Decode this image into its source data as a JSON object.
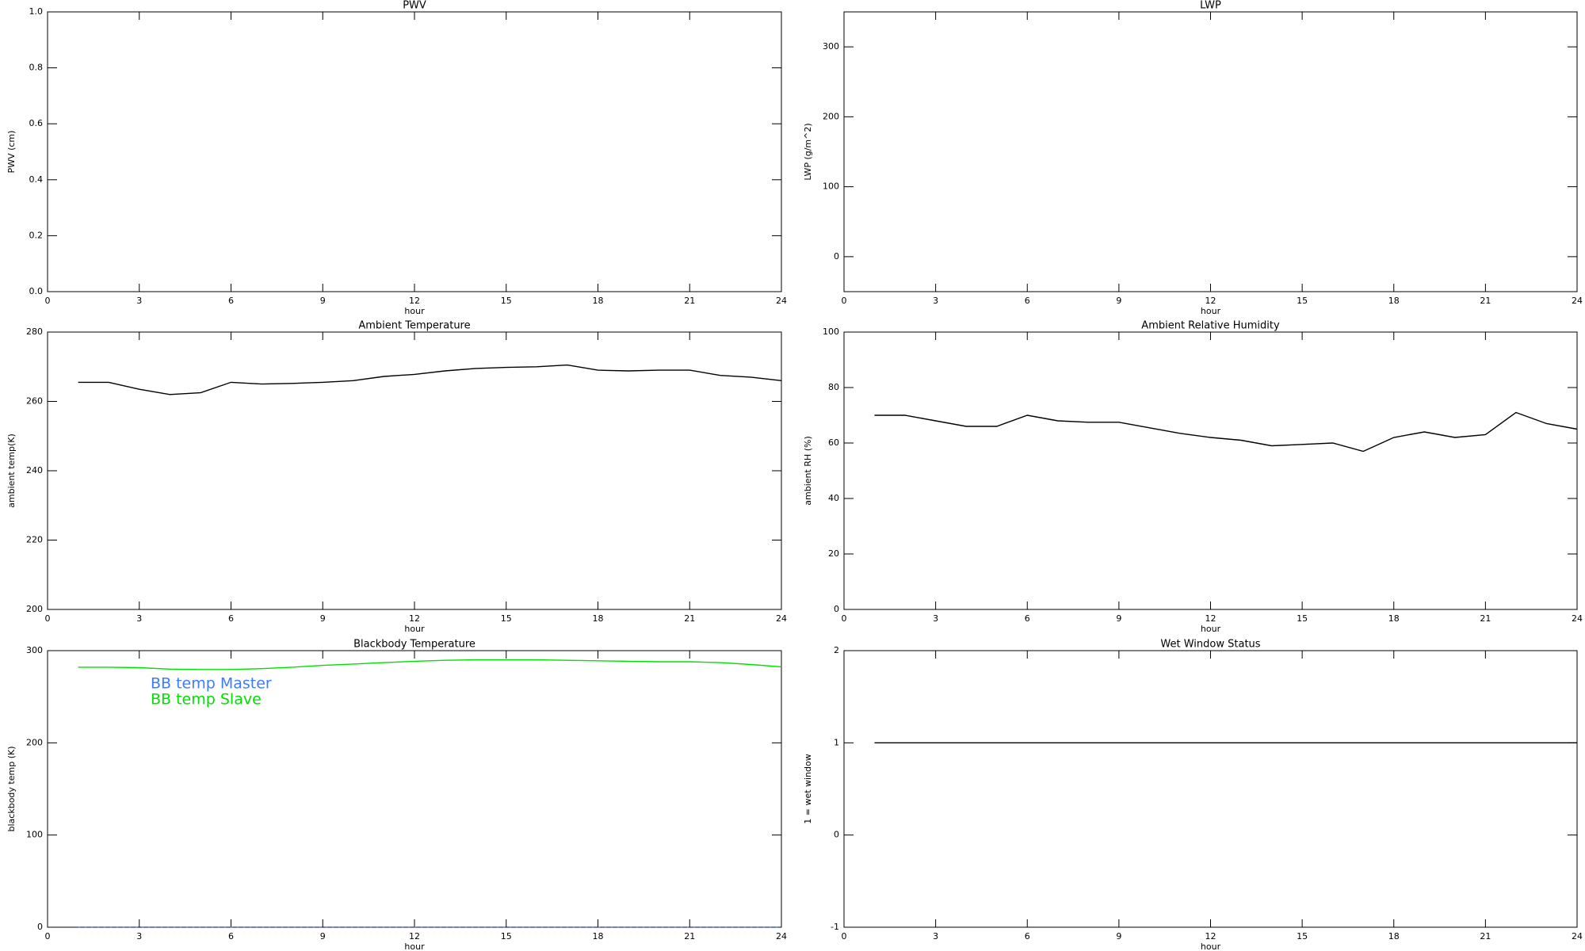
{
  "chart_data": [
    {
      "type": "line",
      "title": "PWV",
      "xlabel": "hour",
      "ylabel": "PWV (cm)",
      "xlim": [
        0,
        24
      ],
      "xticks": [
        0,
        3,
        6,
        9,
        12,
        15,
        18,
        21,
        24
      ],
      "ylim": [
        0,
        1
      ],
      "yticks": [
        {
          "value": 0,
          "label": "0.0"
        },
        0.2,
        0.4,
        0.6,
        0.8,
        {
          "value": 1,
          "label": "1.0"
        }
      ]
    },
    {
      "type": "line",
      "title": "LWP",
      "xlabel": "hour",
      "ylabel": "LWP (g/m^2)",
      "xlim": [
        0,
        24
      ],
      "xticks": [
        0,
        3,
        6,
        9,
        12,
        15,
        18,
        21,
        24
      ],
      "ylim": [
        -50,
        350
      ],
      "yticks": [
        0,
        100,
        200,
        300
      ]
    },
    {
      "type": "line",
      "title": "Ambient Temperature",
      "xlabel": "hour",
      "ylabel": "ambient temp(K)",
      "xlim": [
        0,
        24
      ],
      "xticks": [
        0,
        3,
        6,
        9,
        12,
        15,
        18,
        21,
        24
      ],
      "ylim": [
        200,
        280
      ],
      "yticks": [
        200,
        220,
        240,
        260,
        280
      ],
      "x": [
        1,
        2,
        3,
        4,
        5,
        6,
        7,
        8,
        9,
        10,
        11,
        12,
        13,
        14,
        15,
        16,
        17,
        18,
        19,
        20,
        21,
        22,
        23,
        24
      ],
      "series": [
        {
          "color": "#000000",
          "values": [
            265.5,
            265.5,
            263.5,
            262,
            262.5,
            265.5,
            265,
            265.2,
            265.5,
            266,
            267.2,
            267.8,
            268.8,
            269.5,
            269.8,
            270,
            270.5,
            269,
            268.8,
            269,
            269,
            267.5,
            267,
            266
          ]
        }
      ]
    },
    {
      "type": "line",
      "title": "Ambient Relative Humidity",
      "xlabel": "hour",
      "ylabel": "ambient RH (%)",
      "xlim": [
        0,
        24
      ],
      "xticks": [
        0,
        3,
        6,
        9,
        12,
        15,
        18,
        21,
        24
      ],
      "ylim": [
        0,
        100
      ],
      "yticks": [
        0,
        20,
        40,
        60,
        80,
        100
      ],
      "x": [
        1,
        2,
        3,
        4,
        5,
        6,
        7,
        8,
        9,
        10,
        11,
        12,
        13,
        14,
        15,
        16,
        17,
        18,
        19,
        20,
        21,
        22,
        23,
        24
      ],
      "series": [
        {
          "color": "#000000",
          "values": [
            70,
            70,
            68,
            66,
            66,
            70,
            68,
            67.5,
            67.5,
            65.5,
            63.5,
            62,
            61,
            59,
            59.5,
            60,
            57,
            62,
            64,
            62,
            63,
            71,
            67,
            65
          ]
        }
      ]
    },
    {
      "type": "line",
      "title": "Blackbody Temperature",
      "xlabel": "hour",
      "ylabel": "blackbody temp (K)",
      "xlim": [
        0,
        24
      ],
      "xticks": [
        0,
        3,
        6,
        9,
        12,
        15,
        18,
        21,
        24
      ],
      "ylim": [
        0,
        300
      ],
      "yticks": [
        0,
        100,
        200,
        300
      ],
      "legend": "upper left",
      "x": [
        1,
        2,
        3,
        4,
        5,
        6,
        7,
        8,
        9,
        10,
        11,
        12,
        13,
        14,
        15,
        16,
        17,
        18,
        19,
        20,
        21,
        22,
        23,
        24
      ],
      "series": [
        {
          "name": "BB temp Master",
          "color": "#3a7dff",
          "values": [
            0,
            0,
            0,
            0,
            0,
            0,
            0,
            0,
            0,
            0,
            0,
            0,
            0,
            0,
            0,
            0,
            0,
            0,
            0,
            0,
            0,
            0,
            0,
            0
          ]
        },
        {
          "name": "BB temp Slave",
          "color": "#00e000",
          "values": [
            282,
            282,
            281.5,
            280,
            279.5,
            279.5,
            280.5,
            282,
            284,
            285.5,
            287,
            288.5,
            289.5,
            290,
            290,
            290,
            289.5,
            289,
            288.5,
            288,
            288,
            287,
            285,
            282.5
          ]
        }
      ]
    },
    {
      "type": "line",
      "title": "Wet Window Status",
      "xlabel": "hour",
      "ylabel": "1 = wet window",
      "xlim": [
        0,
        24
      ],
      "xticks": [
        0,
        3,
        6,
        9,
        12,
        15,
        18,
        21,
        24
      ],
      "ylim": [
        -1,
        2
      ],
      "yticks": [
        -1,
        0,
        1,
        2
      ],
      "x": [
        1,
        24
      ],
      "series": [
        {
          "color": "#000000",
          "values": [
            1,
            1
          ]
        }
      ]
    }
  ]
}
